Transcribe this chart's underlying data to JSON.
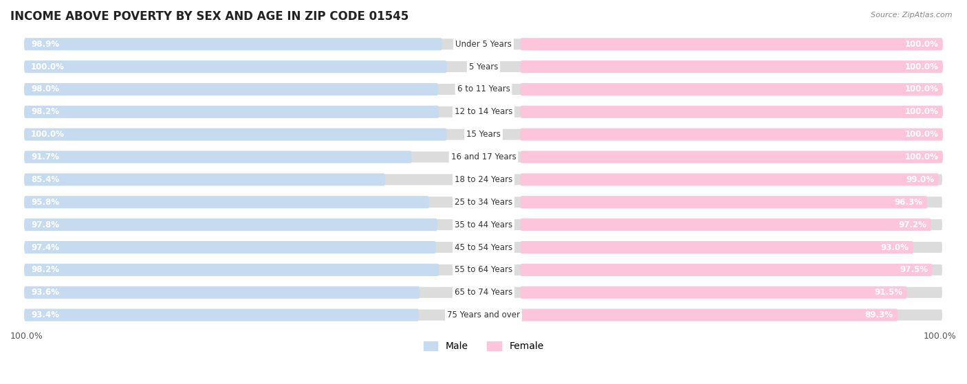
{
  "title": "INCOME ABOVE POVERTY BY SEX AND AGE IN ZIP CODE 01545",
  "source": "Source: ZipAtlas.com",
  "categories": [
    "Under 5 Years",
    "5 Years",
    "6 to 11 Years",
    "12 to 14 Years",
    "15 Years",
    "16 and 17 Years",
    "18 to 24 Years",
    "25 to 34 Years",
    "35 to 44 Years",
    "45 to 54 Years",
    "55 to 64 Years",
    "65 to 74 Years",
    "75 Years and over"
  ],
  "male": [
    98.9,
    100.0,
    98.0,
    98.2,
    100.0,
    91.7,
    85.4,
    95.8,
    97.8,
    97.4,
    98.2,
    93.6,
    93.4
  ],
  "female": [
    100.0,
    100.0,
    100.0,
    100.0,
    100.0,
    100.0,
    99.0,
    96.3,
    97.2,
    93.0,
    97.5,
    91.5,
    89.3
  ],
  "male_color": "#6BAED6",
  "female_color": "#F768A1",
  "male_color_light": "#C6DBEF",
  "female_color_light": "#FCC5DC",
  "bg_bar_color": "#E8E8E8",
  "background_color": "#FFFFFF",
  "label_fontsize": 8.5,
  "category_fontsize": 8.5,
  "legend_fontsize": 10,
  "title_fontsize": 12,
  "xlabel_bottom_left": "100.0%",
  "xlabel_bottom_right": "100.0%"
}
